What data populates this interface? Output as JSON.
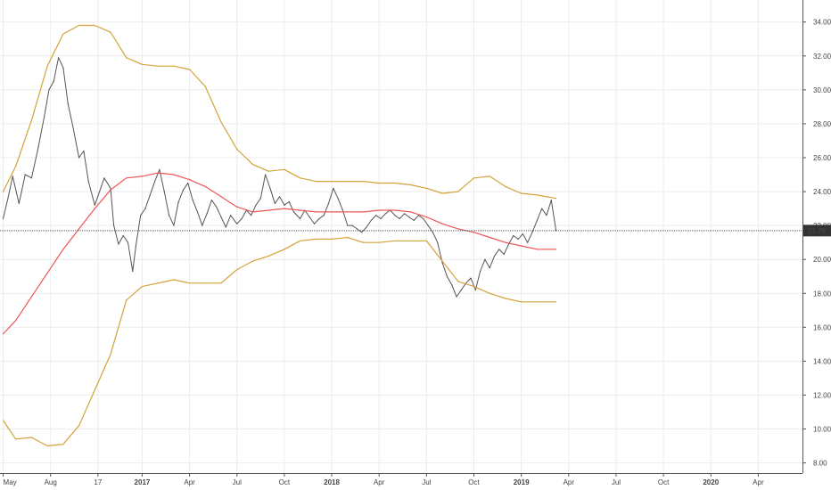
{
  "chart_data": {
    "type": "line",
    "x_ticks": [
      {
        "label": "May",
        "t": 0.2,
        "bold": false
      },
      {
        "label": "Aug",
        "t": 3.2,
        "bold": false
      },
      {
        "label": "17",
        "t": 6.2,
        "bold": false
      },
      {
        "label": "2017",
        "t": 9.0,
        "bold": true
      },
      {
        "label": "Apr",
        "t": 12.0,
        "bold": false
      },
      {
        "label": "Jul",
        "t": 15.0,
        "bold": false
      },
      {
        "label": "Oct",
        "t": 18.0,
        "bold": false
      },
      {
        "label": "2018",
        "t": 21.0,
        "bold": true
      },
      {
        "label": "Apr",
        "t": 24.0,
        "bold": false
      },
      {
        "label": "Jul",
        "t": 27.0,
        "bold": false
      },
      {
        "label": "Oct",
        "t": 30.0,
        "bold": false
      },
      {
        "label": "2019",
        "t": 33.0,
        "bold": true
      },
      {
        "label": "Apr",
        "t": 36.0,
        "bold": false
      },
      {
        "label": "Jul",
        "t": 39.0,
        "bold": false
      },
      {
        "label": "Oct",
        "t": 42.0,
        "bold": false
      },
      {
        "label": "2020",
        "t": 45.0,
        "bold": true
      },
      {
        "label": "Apr",
        "t": 48.0,
        "bold": false
      }
    ],
    "y_ticks": [
      "8.00",
      "10.00",
      "12.00",
      "14.00",
      "16.00",
      "18.00",
      "20.00",
      "22.00",
      "24.00",
      "26.00",
      "28.00",
      "30.00",
      "32.00",
      "34.00"
    ],
    "ylim": [
      7.4,
      35.3
    ],
    "xlim": [
      0,
      50.8
    ],
    "last_price": "21.70",
    "last_value": 21.7,
    "grid": true,
    "series": [
      {
        "color": "#555555",
        "points": [
          [
            0.2,
            22.4
          ],
          [
            0.5,
            23.6
          ],
          [
            0.8,
            24.9
          ],
          [
            1.2,
            23.3
          ],
          [
            1.6,
            25.0
          ],
          [
            2.0,
            24.8
          ],
          [
            2.4,
            26.5
          ],
          [
            2.8,
            28.4
          ],
          [
            3.1,
            30.0
          ],
          [
            3.4,
            30.5
          ],
          [
            3.7,
            31.9
          ],
          [
            4.0,
            31.3
          ],
          [
            4.3,
            29.2
          ],
          [
            4.6,
            27.9
          ],
          [
            5.0,
            26.0
          ],
          [
            5.3,
            26.4
          ],
          [
            5.6,
            24.6
          ],
          [
            6.0,
            23.2
          ],
          [
            6.3,
            24.0
          ],
          [
            6.6,
            24.8
          ],
          [
            7.0,
            24.2
          ],
          [
            7.2,
            22.0
          ],
          [
            7.5,
            20.9
          ],
          [
            7.8,
            21.4
          ],
          [
            8.1,
            21.0
          ],
          [
            8.4,
            19.3
          ],
          [
            8.6,
            20.8
          ],
          [
            8.9,
            22.6
          ],
          [
            9.2,
            23.0
          ],
          [
            9.5,
            23.8
          ],
          [
            9.8,
            24.6
          ],
          [
            10.1,
            25.3
          ],
          [
            10.4,
            24.0
          ],
          [
            10.7,
            22.6
          ],
          [
            11.0,
            22.0
          ],
          [
            11.3,
            23.4
          ],
          [
            11.6,
            24.1
          ],
          [
            11.9,
            24.5
          ],
          [
            12.2,
            23.5
          ],
          [
            12.5,
            22.8
          ],
          [
            12.8,
            22.0
          ],
          [
            13.1,
            22.7
          ],
          [
            13.4,
            23.5
          ],
          [
            13.7,
            23.1
          ],
          [
            14.0,
            22.5
          ],
          [
            14.3,
            21.9
          ],
          [
            14.6,
            22.6
          ],
          [
            15.0,
            22.1
          ],
          [
            15.3,
            22.4
          ],
          [
            15.6,
            22.9
          ],
          [
            15.9,
            22.6
          ],
          [
            16.2,
            23.2
          ],
          [
            16.5,
            23.6
          ],
          [
            16.8,
            25.0
          ],
          [
            17.1,
            24.2
          ],
          [
            17.4,
            23.3
          ],
          [
            17.7,
            23.7
          ],
          [
            18.0,
            23.2
          ],
          [
            18.3,
            23.4
          ],
          [
            18.6,
            22.8
          ],
          [
            19.0,
            22.4
          ],
          [
            19.3,
            22.9
          ],
          [
            19.6,
            22.5
          ],
          [
            19.9,
            22.1
          ],
          [
            20.2,
            22.4
          ],
          [
            20.5,
            22.6
          ],
          [
            20.8,
            23.3
          ],
          [
            21.1,
            24.2
          ],
          [
            21.4,
            23.6
          ],
          [
            21.7,
            22.9
          ],
          [
            22.0,
            22.0
          ],
          [
            22.3,
            22.0
          ],
          [
            22.6,
            21.8
          ],
          [
            22.9,
            21.6
          ],
          [
            23.2,
            21.9
          ],
          [
            23.5,
            22.3
          ],
          [
            23.8,
            22.6
          ],
          [
            24.1,
            22.4
          ],
          [
            24.4,
            22.7
          ],
          [
            24.7,
            22.9
          ],
          [
            25.0,
            22.6
          ],
          [
            25.3,
            22.4
          ],
          [
            25.6,
            22.7
          ],
          [
            25.9,
            22.5
          ],
          [
            26.2,
            22.3
          ],
          [
            26.5,
            22.6
          ],
          [
            26.8,
            22.4
          ],
          [
            27.1,
            22.0
          ],
          [
            27.4,
            21.6
          ],
          [
            27.7,
            21.0
          ],
          [
            28.0,
            19.8
          ],
          [
            28.3,
            19.0
          ],
          [
            28.6,
            18.5
          ],
          [
            28.9,
            17.8
          ],
          [
            29.2,
            18.2
          ],
          [
            29.5,
            18.6
          ],
          [
            29.8,
            18.9
          ],
          [
            30.1,
            18.2
          ],
          [
            30.4,
            19.3
          ],
          [
            30.7,
            20.0
          ],
          [
            31.0,
            19.5
          ],
          [
            31.3,
            20.2
          ],
          [
            31.6,
            20.6
          ],
          [
            31.9,
            20.3
          ],
          [
            32.2,
            20.9
          ],
          [
            32.5,
            21.4
          ],
          [
            32.8,
            21.2
          ],
          [
            33.1,
            21.5
          ],
          [
            33.4,
            21.0
          ],
          [
            33.7,
            21.6
          ],
          [
            34.0,
            22.3
          ],
          [
            34.3,
            23.0
          ],
          [
            34.6,
            22.6
          ],
          [
            34.9,
            23.5
          ],
          [
            35.2,
            21.7
          ]
        ]
      },
      {
        "color": "#ee5555",
        "points": [
          [
            0.2,
            15.6
          ],
          [
            1.0,
            16.4
          ],
          [
            2.0,
            17.8
          ],
          [
            3.0,
            19.2
          ],
          [
            4.0,
            20.6
          ],
          [
            5.0,
            21.8
          ],
          [
            6.0,
            23.0
          ],
          [
            7.0,
            24.1
          ],
          [
            8.0,
            24.8
          ],
          [
            9.0,
            24.9
          ],
          [
            10.0,
            25.1
          ],
          [
            11.0,
            25.0
          ],
          [
            12.0,
            24.7
          ],
          [
            13.0,
            24.3
          ],
          [
            14.0,
            23.7
          ],
          [
            15.0,
            23.1
          ],
          [
            16.0,
            22.8
          ],
          [
            17.0,
            22.9
          ],
          [
            18.0,
            23.0
          ],
          [
            19.0,
            22.9
          ],
          [
            20.0,
            22.8
          ],
          [
            21.0,
            22.8
          ],
          [
            22.0,
            22.8
          ],
          [
            23.0,
            22.8
          ],
          [
            24.0,
            22.9
          ],
          [
            25.0,
            22.9
          ],
          [
            26.0,
            22.8
          ],
          [
            27.0,
            22.5
          ],
          [
            28.0,
            22.1
          ],
          [
            29.0,
            21.8
          ],
          [
            30.0,
            21.6
          ],
          [
            31.0,
            21.3
          ],
          [
            32.0,
            21.0
          ],
          [
            33.0,
            20.8
          ],
          [
            34.0,
            20.6
          ],
          [
            35.2,
            20.6
          ]
        ]
      },
      {
        "color": "#d4a23a",
        "points": [
          [
            0.2,
            24.0
          ],
          [
            1.0,
            25.5
          ],
          [
            2.0,
            28.2
          ],
          [
            3.0,
            31.4
          ],
          [
            4.0,
            33.3
          ],
          [
            5.0,
            33.8
          ],
          [
            6.0,
            33.8
          ],
          [
            7.0,
            33.4
          ],
          [
            8.0,
            31.9
          ],
          [
            9.0,
            31.5
          ],
          [
            10.0,
            31.4
          ],
          [
            11.0,
            31.4
          ],
          [
            12.0,
            31.2
          ],
          [
            13.0,
            30.2
          ],
          [
            14.0,
            28.1
          ],
          [
            15.0,
            26.5
          ],
          [
            16.0,
            25.6
          ],
          [
            17.0,
            25.2
          ],
          [
            18.0,
            25.3
          ],
          [
            19.0,
            24.8
          ],
          [
            20.0,
            24.6
          ],
          [
            21.0,
            24.6
          ],
          [
            22.0,
            24.6
          ],
          [
            23.0,
            24.6
          ],
          [
            24.0,
            24.5
          ],
          [
            25.0,
            24.5
          ],
          [
            26.0,
            24.4
          ],
          [
            27.0,
            24.2
          ],
          [
            28.0,
            23.9
          ],
          [
            29.0,
            24.0
          ],
          [
            30.0,
            24.8
          ],
          [
            31.0,
            24.9
          ],
          [
            32.0,
            24.3
          ],
          [
            33.0,
            23.9
          ],
          [
            34.0,
            23.8
          ],
          [
            35.2,
            23.6
          ]
        ]
      },
      {
        "color": "#d4a23a",
        "points": [
          [
            0.2,
            10.5
          ],
          [
            1.0,
            9.4
          ],
          [
            2.0,
            9.5
          ],
          [
            3.0,
            9.0
          ],
          [
            4.0,
            9.1
          ],
          [
            5.0,
            10.2
          ],
          [
            6.0,
            12.3
          ],
          [
            7.0,
            14.4
          ],
          [
            8.0,
            17.6
          ],
          [
            9.0,
            18.4
          ],
          [
            10.0,
            18.6
          ],
          [
            11.0,
            18.8
          ],
          [
            12.0,
            18.6
          ],
          [
            13.0,
            18.6
          ],
          [
            14.0,
            18.6
          ],
          [
            15.0,
            19.4
          ],
          [
            16.0,
            19.9
          ],
          [
            17.0,
            20.2
          ],
          [
            18.0,
            20.6
          ],
          [
            19.0,
            21.1
          ],
          [
            20.0,
            21.2
          ],
          [
            21.0,
            21.2
          ],
          [
            22.0,
            21.3
          ],
          [
            23.0,
            21.0
          ],
          [
            24.0,
            21.0
          ],
          [
            25.0,
            21.1
          ],
          [
            26.0,
            21.1
          ],
          [
            27.0,
            21.1
          ],
          [
            28.0,
            19.9
          ],
          [
            29.0,
            18.7
          ],
          [
            30.0,
            18.4
          ],
          [
            31.0,
            18.0
          ],
          [
            32.0,
            17.7
          ],
          [
            33.0,
            17.5
          ],
          [
            34.0,
            17.5
          ],
          [
            35.2,
            17.5
          ]
        ]
      }
    ]
  }
}
